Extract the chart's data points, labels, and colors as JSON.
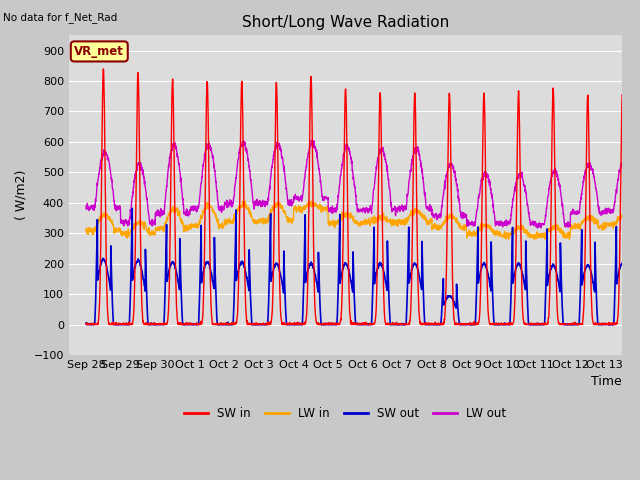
{
  "title": "Short/Long Wave Radiation",
  "xlabel": "Time",
  "ylabel": "( W/m2)",
  "ylim": [
    -100,
    950
  ],
  "yticks": [
    -100,
    0,
    100,
    200,
    300,
    400,
    500,
    600,
    700,
    800,
    900
  ],
  "annotation_text": "No data for f_Net_Rad",
  "station_label": "VR_met",
  "legend_entries": [
    "SW in",
    "LW in",
    "SW out",
    "LW out"
  ],
  "legend_colors": [
    "#ff0000",
    "#ffa500",
    "#0000cc",
    "#cc00cc"
  ],
  "bg_color": "#dcdcdc",
  "fig_color": "#c8c8c8",
  "num_days": 16,
  "sw_in_peaks": [
    840,
    830,
    805,
    800,
    800,
    795,
    818,
    775,
    762,
    762,
    762,
    760,
    762,
    775,
    755,
    760
  ],
  "sw_out_peaks": [
    215,
    210,
    205,
    205,
    205,
    200,
    200,
    200,
    200,
    200,
    95,
    200,
    200,
    195,
    195,
    200
  ],
  "lw_in_baseline": [
    310,
    300,
    315,
    325,
    338,
    342,
    380,
    332,
    337,
    338,
    318,
    298,
    292,
    292,
    322,
    328
  ],
  "lw_in_day_bump": [
    50,
    35,
    65,
    65,
    57,
    55,
    15,
    30,
    15,
    35,
    37,
    27,
    28,
    28,
    30,
    30
  ],
  "lw_out_night": [
    385,
    335,
    365,
    380,
    398,
    398,
    415,
    377,
    377,
    382,
    357,
    332,
    332,
    328,
    368,
    372
  ],
  "lw_out_peaks": [
    565,
    528,
    590,
    592,
    598,
    592,
    598,
    582,
    577,
    577,
    527,
    498,
    492,
    507,
    527,
    537
  ],
  "x_tick_labels": [
    "Sep 28",
    "Sep 29",
    "Sep 30",
    "Oct 1",
    "Oct 2",
    "Oct 3",
    "Oct 4",
    "Oct 5",
    "Oct 6",
    "Oct 7",
    "Oct 8",
    "Oct 9",
    "Oct 10",
    "Oct 11",
    "Oct 12",
    "Oct 13"
  ],
  "x_tick_positions": [
    0,
    1,
    2,
    3,
    4,
    5,
    6,
    7,
    8,
    9,
    10,
    11,
    12,
    13,
    14,
    15
  ]
}
